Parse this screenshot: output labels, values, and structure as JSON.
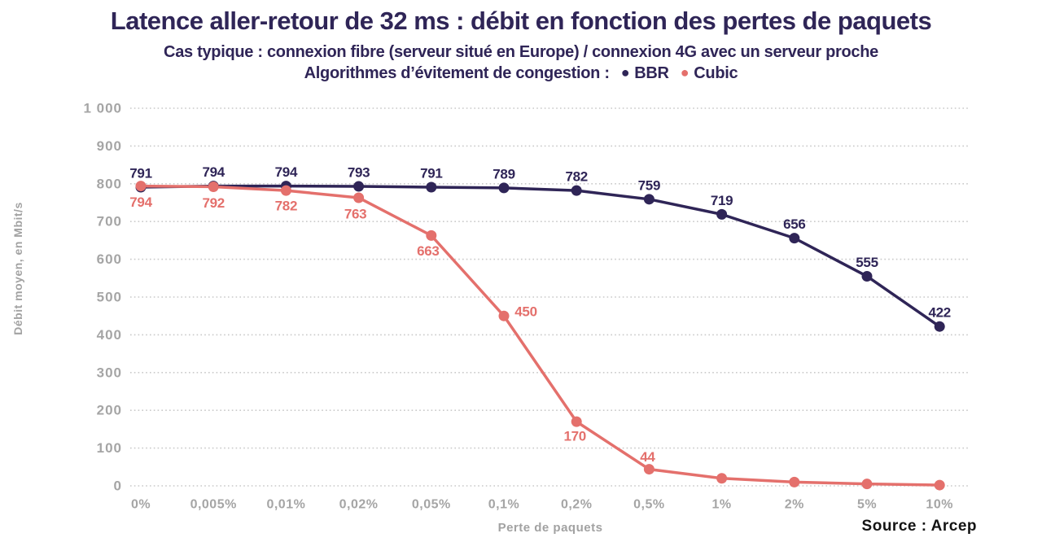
{
  "header": {
    "title": "Latence aller-retour de 32 ms : débit en fonction des pertes de paquets",
    "subtitle": "Cas typique : connexion fibre (serveur situé en Europe) / connexion 4G avec un serveur proche",
    "legend_prefix": "Algorithmes d’évitement de congestion :",
    "legend": [
      {
        "label": "BBR",
        "dot": "●",
        "color": "#2f2557"
      },
      {
        "label": "Cubic",
        "dot": "●",
        "color": "#e4706c"
      }
    ]
  },
  "footer": {
    "source": "Source : Arcep"
  },
  "colors": {
    "navy": "#2f2557",
    "salmon": "#e4706c",
    "grid": "#c9c9c9",
    "axis_text": "#a5a5a5"
  },
  "chart_data": {
    "type": "line",
    "title": "Latence aller-retour de 32 ms : débit en fonction des pertes de paquets",
    "xlabel": "Perte de paquets",
    "ylabel": "Débit moyen, en Mbit/s",
    "categories": [
      "0%",
      "0,005%",
      "0,01%",
      "0,02%",
      "0,05%",
      "0,1%",
      "0,2%",
      "0,5%",
      "1%",
      "2%",
      "5%",
      "10%"
    ],
    "ylim": [
      0,
      1000
    ],
    "y_ticks": [
      {
        "value": 0,
        "label": "0"
      },
      {
        "value": 100,
        "label": "100"
      },
      {
        "value": 200,
        "label": "200"
      },
      {
        "value": 300,
        "label": "300"
      },
      {
        "value": 400,
        "label": "400"
      },
      {
        "value": 500,
        "label": "500"
      },
      {
        "value": 600,
        "label": "600"
      },
      {
        "value": 700,
        "label": "700"
      },
      {
        "value": 800,
        "label": "800"
      },
      {
        "value": 900,
        "label": "900"
      },
      {
        "value": 1000,
        "label": "1 000"
      }
    ],
    "grid": "horizontal-dotted",
    "legend_position": "top",
    "series": [
      {
        "name": "BBR",
        "color": "#2f2557",
        "values": [
          791,
          794,
          794,
          793,
          791,
          789,
          782,
          759,
          719,
          656,
          555,
          422
        ],
        "labels": [
          "791",
          "794",
          "794",
          "793",
          "791",
          "789",
          "782",
          "759",
          "719",
          "656",
          "555",
          "422"
        ],
        "label_offsets": [
          [
            0,
            -17
          ],
          [
            0,
            -17
          ],
          [
            0,
            -17
          ],
          [
            0,
            -17
          ],
          [
            0,
            -17
          ],
          [
            0,
            -17
          ],
          [
            0,
            -17
          ],
          [
            0,
            -17
          ],
          [
            0,
            -17
          ],
          [
            0,
            -17
          ],
          [
            0,
            -17
          ],
          [
            0,
            -17
          ]
        ]
      },
      {
        "name": "Cubic",
        "color": "#e4706c",
        "values": [
          794,
          792,
          782,
          763,
          663,
          450,
          170,
          44,
          20,
          10,
          5,
          2
        ],
        "labels": [
          "794",
          "792",
          "782",
          "763",
          "663",
          "450",
          "170",
          "44",
          null,
          null,
          null,
          null
        ],
        "label_offsets": [
          [
            0,
            20
          ],
          [
            0,
            20
          ],
          [
            0,
            19
          ],
          [
            -4,
            20
          ],
          [
            -4,
            19
          ],
          [
            27,
            -5
          ],
          [
            -2,
            18
          ],
          [
            -2,
            -15
          ],
          null,
          null,
          null,
          null
        ]
      }
    ]
  }
}
